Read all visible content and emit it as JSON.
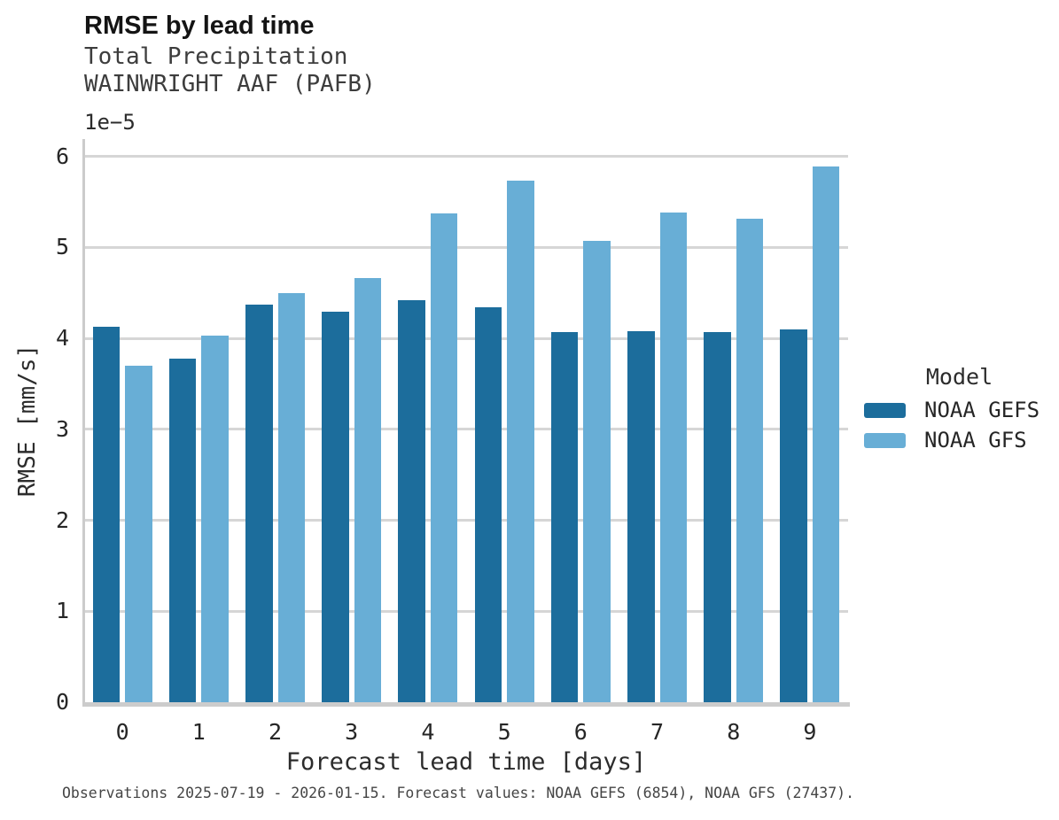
{
  "chart_data": {
    "type": "bar",
    "title": "RMSE by lead time",
    "subtitle_lines": [
      "Total Precipitation",
      "WAINWRIGHT AAF (PAFB)"
    ],
    "xlabel": "Forecast lead time [days]",
    "ylabel": "RMSE [mm/s]",
    "y_offset_label": "1e−5",
    "value_units": "×1e-5 mm/s",
    "categories": [
      "0",
      "1",
      "2",
      "3",
      "4",
      "5",
      "6",
      "7",
      "8",
      "9"
    ],
    "series": [
      {
        "name": "NOAA GEFS",
        "color": "#1c6d9c",
        "values": [
          4.13,
          3.78,
          4.37,
          4.29,
          4.42,
          4.34,
          4.07,
          4.08,
          4.07,
          4.1
        ]
      },
      {
        "name": "NOAA GFS",
        "color": "#68aed6",
        "values": [
          3.7,
          4.03,
          4.5,
          4.66,
          5.37,
          5.73,
          5.07,
          5.38,
          5.31,
          5.89
        ]
      }
    ],
    "yticks": [
      "0",
      "1",
      "2",
      "3",
      "4",
      "5",
      "6"
    ],
    "ylim": [
      0,
      6.19
    ],
    "grid": "horizontal",
    "legend": {
      "title": "Model",
      "position": "right-center"
    },
    "caption": "Observations 2025-07-19 - 2026-01-15. Forecast values: NOAA GEFS (6854), NOAA GFS (27437)."
  }
}
